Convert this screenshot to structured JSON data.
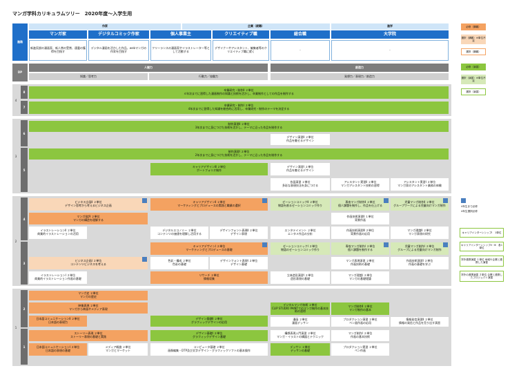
{
  "title": "マンガ学科カリキュラムツリー　2020年度～入学生用",
  "header": {
    "left_label": "作家",
    "mid_label": "企業（就職）",
    "right_label": "進学",
    "side_label": "進路",
    "cols": [
      "マンガ家",
      "デジタルコミック作家",
      "個人事業主",
      "クリエイティブ職",
      "総合職",
      "大学院"
    ],
    "col_desc": [
      "新進気鋭の漫画家、新人賞の受賞、連載の獲得を目指す",
      "デジタル漫画を活かした作品、webマンガの作家を目指す",
      "フリーランスの漫画家やイラストレーター等として活動する",
      "デザイナーやアシスタント、編集者等のクリエイティブ職に就く",
      "-",
      "-"
    ]
  },
  "dp": {
    "label": "DP",
    "left": "人間力",
    "left_sub": [
      "知識／思考力",
      "行動力／協働力"
    ],
    "right": "創造力",
    "right_sub": [
      "発想力／表現力／創造力"
    ]
  },
  "years": [
    "4",
    "3",
    "2",
    "1"
  ],
  "semesters": [
    "8",
    "7",
    "6",
    "5",
    "4",
    "3",
    "2",
    "1"
  ],
  "rows": {
    "s8": {
      "name": "卒業研究・制作Ⅱ ２単位",
      "desc": "４年次までに習得した漫画制作の知識と技術を活かし、卒業制作としての作品を制作する"
    },
    "s7": {
      "name": "卒業研究・制作Ⅰ ２単位",
      "desc": "4年次までに習得した知識を総合的に活用し、卒業研究・制作のテーマを決定する"
    },
    "s6a": {
      "name": "制作演習Ⅱ ２単位",
      "desc": "3年次までに身につけた技術を活かし、テーマに沿った作品を制作する"
    },
    "s6b": {
      "name": "デザイン演習Ⅱ ２単位",
      "desc": "作品を魅せるデザイン"
    },
    "s5a": {
      "name": "制作演習Ⅰ ２単位",
      "desc": "2年次までに身につけた技術を活かし、テーマに沿った作品を制作する"
    },
    "s5b": {
      "name": "キャリアデザインⅢ ２単位",
      "desc": "ポートフォリオ制作"
    },
    "s5c": {
      "name": "デザイン演習Ⅰ ２単位",
      "desc": "作品を魅せるデザイン"
    },
    "s5d": {
      "name": "作画演習 ２単位",
      "desc": "多彩な表現技法を身につける"
    },
    "s5e": {
      "name": "アシスタント実習Ⅱ ２単位",
      "desc": "マンガアシスタント技術の習得"
    },
    "s5f": {
      "name": "アシスタント実習Ⅰ ２単位",
      "desc": "マンガ家のアシスタント業務の体験"
    }
  },
  "y2": {
    "a": {
      "name": "ビジネス企画Ⅱ ２単位",
      "desc": "デザイン思考から考えるビジネス企画"
    },
    "b": {
      "name": "キャリアデザインⅡ ２単位",
      "desc": "マーケティングとプロデュースの実践と職業の選択"
    },
    "c": {
      "name": "ゼーションコミックⅡ ２単位",
      "desc": "物語を創るゼーションコミック作り"
    },
    "d": {
      "name": "専攻マンガ制作Ⅱ ２単位",
      "desc": "個人課題を制作し、作品を仕上げる"
    },
    "e": {
      "name": "児童マンガ制作Ⅱ ２単位",
      "desc": "グループワークによる児童向けマンガ制作"
    },
    "f": {
      "name": "マンガ批評 ２単位",
      "desc": "マンガの構造を理解する"
    },
    "g": {
      "name": "作画技術演習Ⅱ １単位",
      "desc": "背景作画"
    },
    "h": {
      "name": "イラストレーションⅡ ２単位",
      "desc": "商業的イラストレーションの活用"
    },
    "i": {
      "name": "デジタルエコノミー ２単位",
      "desc": "コンテンツの価値を理解し活用する"
    },
    "j": {
      "name": "デザインフォント表現Ⅱ ２単位",
      "desc": "デザイン表現"
    },
    "k": {
      "name": "エンタテイメント ２単位",
      "desc": "エンタメ作品の分析"
    },
    "l": {
      "name": "作画技術演習Ⅲ ２単位",
      "desc": "背景作画の応用"
    },
    "m": {
      "name": "マンガ理論Ⅱ ２単位",
      "desc": "マンガ表現の研究"
    },
    "n": {
      "name": "キャリアデザインⅠ ２単位",
      "desc": "マーケティングとプロデュースの基礎"
    },
    "o": {
      "name": "ゼーションコミックⅠ ２単位",
      "desc": "物語のゼーションコミック作り"
    },
    "p": {
      "name": "専攻マンガ制作Ⅰ ２単位",
      "desc": "個人課題を制作する"
    },
    "q": {
      "name": "児童マンガ制作Ⅰ ２単位",
      "desc": "グループによる児童向けマンガ制作"
    },
    "r": {
      "name": "ビジネス企画Ⅰ ２単位",
      "desc": "コンテンツビジネスを考える"
    },
    "s": {
      "name": "色彩・構成 ２単位",
      "desc": "色彩の基礎"
    },
    "t": {
      "name": "デザインフォント表現Ⅰ ２単位",
      "desc": "デザイン基礎"
    },
    "u": {
      "name": "マンガ表現演習 ２単位",
      "desc": "作画技術の基礎"
    },
    "v": {
      "name": "作画技術演習Ⅰ ２単位",
      "desc": "作画の基礎を学ぶ"
    },
    "w": {
      "name": "マンガ理論Ⅰ ２単位",
      "desc": "マンガの基礎理論"
    },
    "x": {
      "name": "イラストレーションⅠ ２単位",
      "desc": "商業的イラストレーション作画の基礎"
    },
    "y": {
      "name": "リサーチ ２単位",
      "desc": "情報収集"
    },
    "z": {
      "name": "立体造形演習Ⅰ ２単位",
      "desc": "造形表現の基礎"
    }
  },
  "y1": {
    "a": {
      "name": "マンガ史 ２単位",
      "desc": "マンガの歴史"
    },
    "b": {
      "name": "映像表現 ２単位",
      "desc": "マンガから映画やメディア表現"
    },
    "c": {
      "name": "日本語コミュニケーションⅡ ２単位",
      "desc": "日本語の表現力"
    },
    "d": {
      "name": "デザイン基礎Ⅱ ２単位",
      "desc": "グラフィックデザインの応用"
    },
    "e": {
      "name": "デジタルマンガ技術 ２単位",
      "desc": "CLIP STUDIO PAINTでのマンガ制作の基本技術の習得"
    },
    "f": {
      "name": "マンガ制作Ⅱ ２単位",
      "desc": "マンガ制作の基本"
    },
    "g": {
      "name": "漫画 ２単位",
      "desc": "漫画デッサン"
    },
    "h": {
      "name": "プロダクション演習 ２単位",
      "desc": "ペン画作画の応用"
    },
    "i": {
      "name": "情報発信演習Ⅱ ２単位",
      "desc": "情報の発信と作品を売り出す演習"
    },
    "j": {
      "name": "ストーリー表現 ２単位",
      "desc": "ストーリー表現の基礎と実践"
    },
    "k": {
      "name": "デザイン基礎Ⅰ ２単位",
      "desc": "グラフィックデザイン基礎"
    },
    "l": {
      "name": "構想表現入門演習 ２単位",
      "desc": "マンガ・イラストの構図とテクニック"
    },
    "m": {
      "name": "マンガ制作Ⅰ ２単位",
      "desc": "作画の基本技術"
    },
    "n": {
      "name": "日本語コミュニケーションⅠ ２単位",
      "desc": "日本語の表現の基礎"
    },
    "o": {
      "name": "メディア概論 ２単位",
      "desc": "マンガとマーケット"
    },
    "p": {
      "name": "コンピュータ基礎 ２単位",
      "desc": "画像編集・DTP及び文字デザイン・グラフィックソフトの基本操作"
    },
    "q": {
      "name": "デッサン ２単位",
      "desc": "デッサンの基礎"
    },
    "r": {
      "name": "プロダクション実習 ２単位",
      "desc": "ペン作画"
    }
  },
  "legend": {
    "items": [
      "必修（講義）",
      "選択（講義）※単位不足",
      "選択（講義）",
      "必修（演習）",
      "選択（演習）※単位不足",
      "選択（演習）"
    ],
    "note1": "4年生まで必修",
    "note2": "4年生選択必修",
    "side": [
      "キャリアインターンシップⅠ　1単位",
      "キャリアインターンシップⅡ・Ⅲ　各1単位",
      "学外連携演習 １単位 地域や企業と連携した演習",
      "学外の連携演習 ２単位 企業と連携したプロジェクト演習"
    ]
  },
  "colors": {
    "primary": "#1f6fc9",
    "required_lecture": "#f4a261",
    "required_exercise": "#8cc63f"
  }
}
